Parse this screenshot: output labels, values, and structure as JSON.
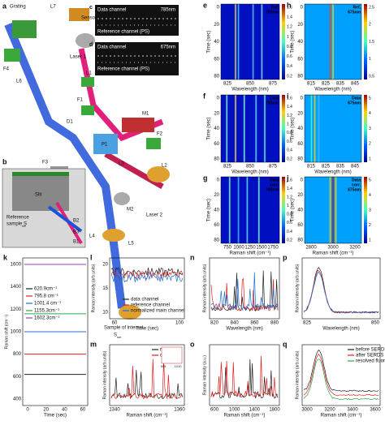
{
  "diagram": {
    "letter": "a",
    "labels": [
      "Grating",
      "L7",
      "Sensor",
      "F4",
      "L6",
      "Laser 1",
      "L1",
      "F1",
      "D1",
      "M1",
      "F2",
      "P1",
      "L3",
      "F3",
      "L2",
      "M2",
      "Laser 2",
      "L4",
      "L5",
      "Sample of interest",
      "S",
      "sm"
    ],
    "inset": {
      "letter": "b",
      "labels": [
        "Slit",
        "Reference",
        "sample S",
        "ref",
        "B2",
        "B3",
        "B1"
      ]
    }
  },
  "sensor_panels": [
    {
      "letter": "c",
      "top": "Data channel",
      "wavelength": "785nm",
      "bottom": "Reference channel (PS)"
    },
    {
      "letter": "d",
      "top": "Data channel",
      "wavelength": "675nm",
      "bottom": "Reference channel (PS)"
    }
  ],
  "heatmaps": [
    {
      "letter": "e",
      "tag": [
        "Ref.",
        "785nm"
      ],
      "ylabel": "Time (sec)",
      "yticks": [
        0,
        20,
        40,
        60,
        80
      ],
      "xticks": [
        825,
        850,
        875
      ],
      "xlabel": "Wavelength (nm)",
      "cbticks": [
        0.2,
        0.4,
        0.6,
        0.8,
        1,
        1.2,
        1.4,
        1.6
      ]
    },
    {
      "letter": "f",
      "tag": [
        "Data",
        "785nm"
      ],
      "ylabel": "Time (sec)",
      "yticks": [
        0,
        20,
        40,
        60,
        80
      ],
      "xticks": [
        825,
        850,
        875
      ],
      "xlabel": "Wavelength (nm)",
      "cbticks": [
        0.2,
        0.4,
        0.6,
        0.8,
        1,
        1.2,
        1.4,
        1.6
      ]
    },
    {
      "letter": "g",
      "tag": [
        "Data",
        "corr.",
        "785nm"
      ],
      "ylabel": "Time (sec)",
      "yticks": [
        0,
        20,
        40,
        60,
        80
      ],
      "xticks": [
        750,
        1000,
        1250,
        1500,
        1750
      ],
      "xlabel": "Raman shift (cm⁻¹)",
      "cbticks": [
        0.2,
        0.4,
        0.6,
        0.8,
        1,
        1.2,
        1.4,
        1.6
      ]
    },
    {
      "letter": "h",
      "tag": [
        "Ref.",
        "675nm"
      ],
      "ylabel": "Time (sec)",
      "yticks": [
        0,
        20,
        40,
        60,
        80
      ],
      "xticks": [
        815,
        825,
        835,
        845
      ],
      "xlabel": "Wavelength (nm)",
      "cbticks": [
        0.5,
        1,
        1.5,
        2,
        2.5
      ]
    },
    {
      "letter": "i",
      "tag": [
        "Data",
        "675nm"
      ],
      "ylabel": "Time (sec)",
      "yticks": [
        0,
        20,
        40,
        60,
        80
      ],
      "xticks": [
        815,
        825,
        835,
        845
      ],
      "xlabel": "Wavelength (nm)",
      "cbticks": [
        1,
        2,
        3,
        4,
        5
      ]
    },
    {
      "letter": "j",
      "tag": [
        "Data",
        "corr.",
        "675nm"
      ],
      "ylabel": "Time (sec)",
      "yticks": [
        0,
        20,
        40,
        60,
        80
      ],
      "xticks": [
        2800,
        3000,
        3200
      ],
      "xlabel": "Raman shift (cm⁻¹)",
      "cbticks": [
        1,
        2,
        3,
        4,
        5
      ]
    }
  ],
  "plots": [
    {
      "letter": "k",
      "ylabel": "Raman shift (cm⁻¹)",
      "xlabel": "Time (sec)",
      "xticks": [
        0,
        20,
        40,
        60
      ],
      "yticks": [
        400,
        600,
        800,
        1000,
        1200,
        1400,
        1600
      ],
      "legend": [
        {
          "name": "620.9cm⁻¹",
          "color": "#222222"
        },
        {
          "name": "795.8 cm⁻¹",
          "color": "#e02020"
        },
        {
          "name": "1001.4 cm⁻¹",
          "color": "#1f6fd0"
        },
        {
          "name": "1155.3cm⁻¹",
          "color": "#2aa84a"
        },
        {
          "name": "1602.3cm⁻¹",
          "color": "#9a3fc0"
        }
      ]
    },
    {
      "letter": "l",
      "ylabel": "Raman intensity (arb.units)",
      "xlabel": "Time (sec)",
      "xticks": [
        60,
        100
      ],
      "yticks": [
        10,
        15,
        20
      ],
      "legend": [
        {
          "name": "data channel",
          "color": "#222222"
        },
        {
          "name": "reference channel",
          "color": "#e02020"
        },
        {
          "name": "normalized main channel",
          "color": "#1f6fd0"
        }
      ]
    },
    {
      "letter": "m",
      "ylabel": "Raman intensity (arb.units)",
      "xlabel": "Raman shift (cm⁻¹)",
      "xticks": [
        1340,
        1360
      ],
      "legend": [
        {
          "name": "raw",
          "color": "#222222"
        },
        {
          "name": "corrected",
          "color": "#e02020"
        }
      ],
      "inset_ticks": [
        995,
        1010
      ]
    },
    {
      "letter": "n",
      "ylabel": "Raman intensity (arb.units)",
      "xlabel": "Wavelength (nm)",
      "xticks": [
        820,
        840,
        860,
        880
      ]
    },
    {
      "letter": "o",
      "ylabel": "Raman intensity (a.u.)",
      "xlabel": "Raman shift (cm⁻¹)",
      "xticks": [
        600,
        1000,
        1400,
        1800
      ]
    },
    {
      "letter": "p",
      "ylabel": "Raman intensity (arb.units)",
      "xlabel": "Wavelength (nm)",
      "xticks": [
        825,
        850
      ]
    },
    {
      "letter": "q",
      "ylabel": "Raman intensity (arb.units)",
      "xlabel": "Raman shift (cm⁻¹)",
      "xticks": [
        3000,
        3200,
        3400,
        3600
      ],
      "legend": [
        {
          "name": "before SERDS",
          "color": "#222222"
        },
        {
          "name": "after SERDS",
          "color": "#e02020"
        },
        {
          "name": "resolved fluorescence",
          "color": "#2aa84a"
        }
      ]
    }
  ]
}
